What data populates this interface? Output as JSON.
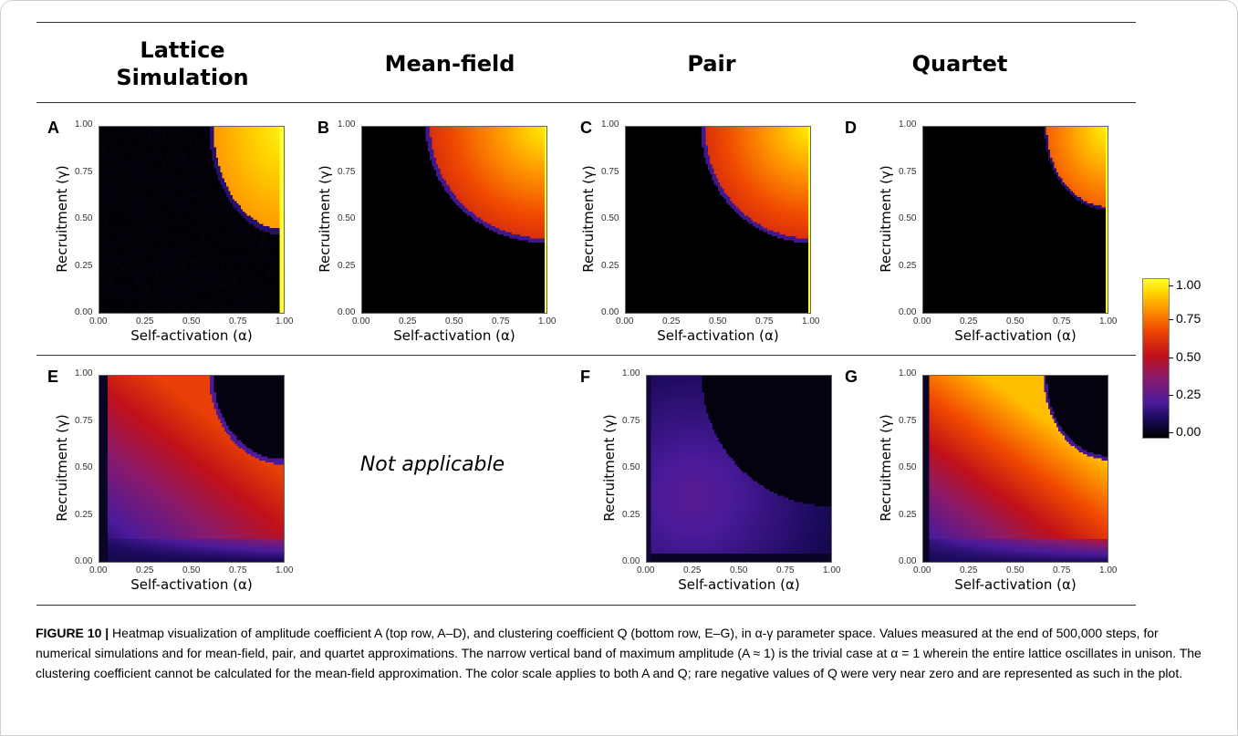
{
  "columns": [
    "Lattice Simulation",
    "Mean-field",
    "Pair",
    "Quartet"
  ],
  "panel_letters": [
    "A",
    "B",
    "C",
    "D",
    "E",
    "F",
    "G"
  ],
  "axis": {
    "ylabel": "Recruitment (γ)",
    "xlabel": "Self-activation (α)",
    "x_ticks": [
      "0.00",
      "0.25",
      "0.50",
      "0.75",
      "1.00"
    ],
    "y_ticks": [
      "0.00",
      "0.25",
      "0.50",
      "0.75",
      "1.00"
    ]
  },
  "not_applicable": "Not applicable",
  "colorbar": {
    "ticks": [
      "1.00",
      "0.75",
      "0.50",
      "0.25",
      "0.00"
    ],
    "colors": [
      "#000000",
      "#1a0a5a",
      "#4a1a9a",
      "#8a1a6a",
      "#c0101a",
      "#f04a00",
      "#ff9a00",
      "#ffd800",
      "#ffff30"
    ]
  },
  "caption": {
    "label": "FIGURE 10 |",
    "text": " Heatmap visualization of amplitude coefficient A (top row, A–D), and clustering coefficient Q (bottom row, E–G), in α-γ parameter space. Values measured at the end of 500,000 steps, for numerical simulations and for mean-field, pair, and quartet approximations. The narrow vertical band of maximum amplitude (A ≈ 1) is the trivial case at α = 1 wherein the entire lattice oscillates in unison. The clustering coefficient cannot be calculated for the mean-field approximation. The color scale applies to both A and Q; rare negative values of Q were very near zero and are represented as such in the plot."
  }
}
